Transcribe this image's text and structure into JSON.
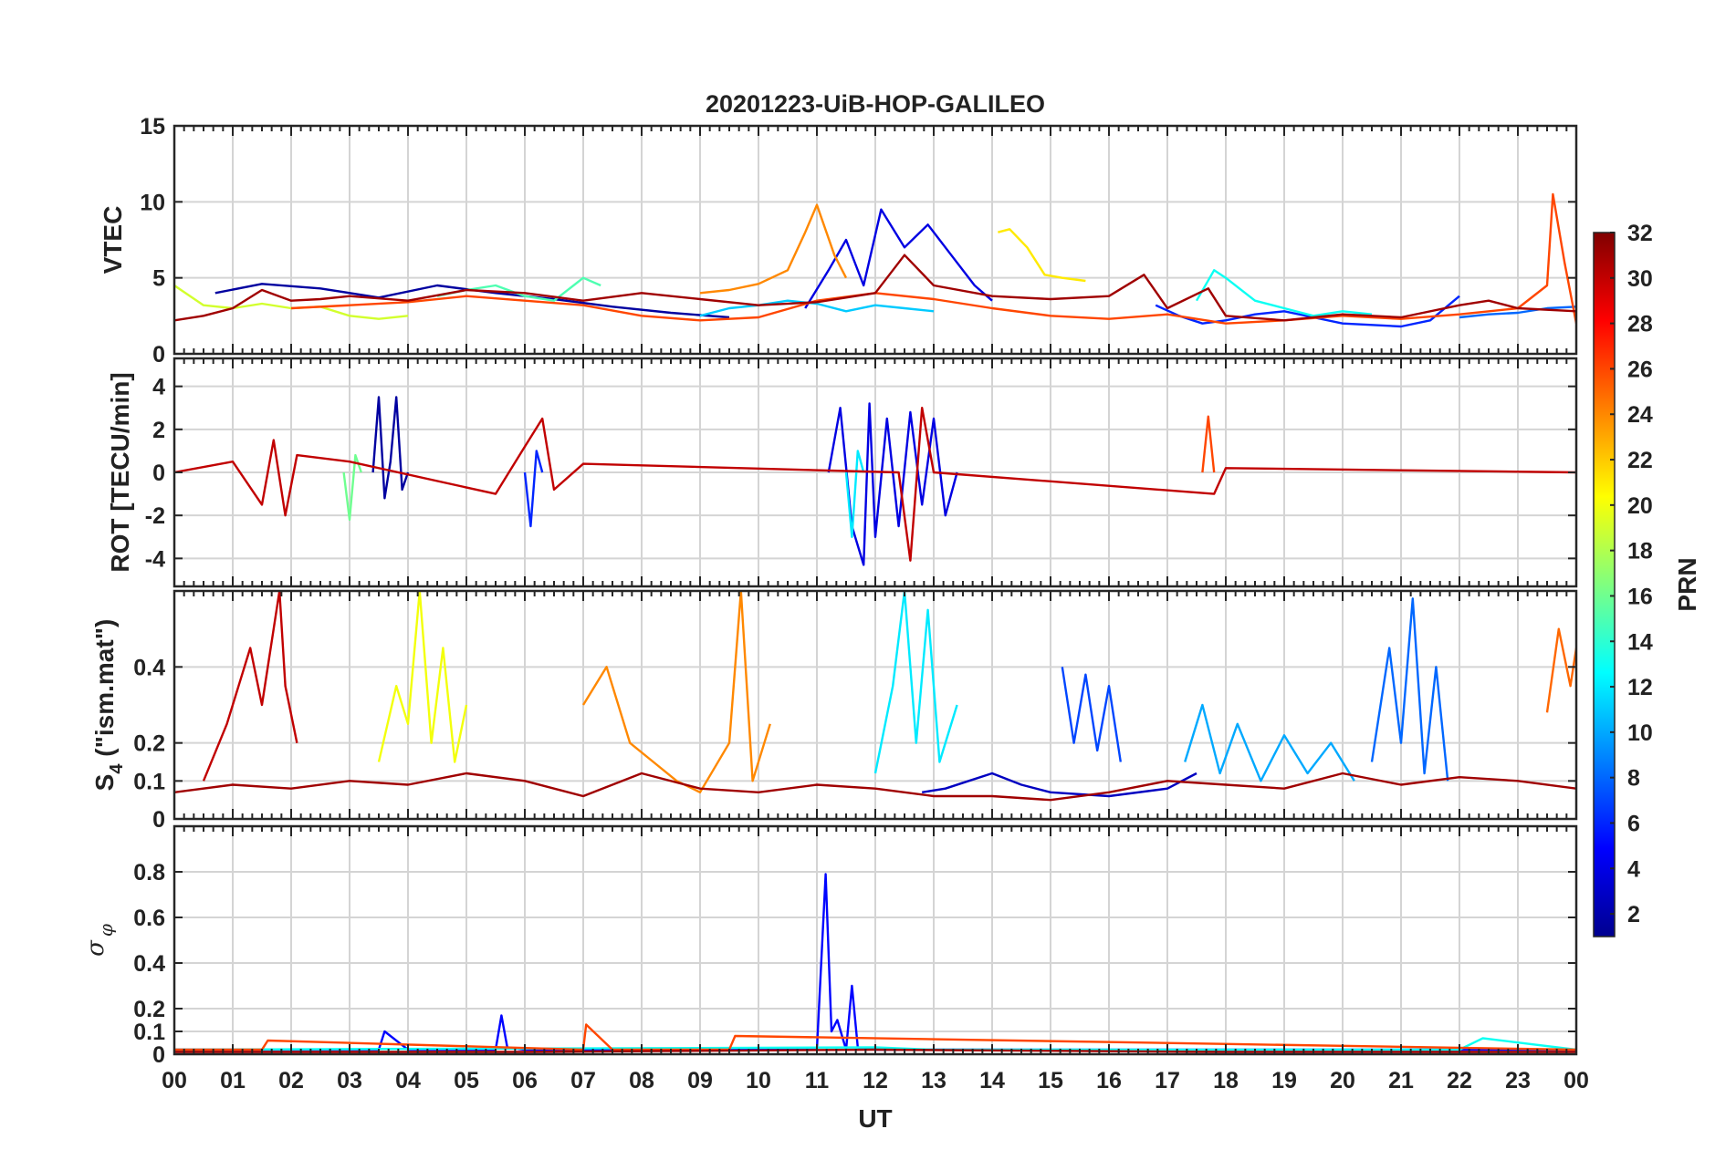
{
  "chart_data": {
    "type": "line",
    "title": "20201223-UiB-HOP-GALILEO",
    "xlabel": "UT",
    "x_ticks": [
      "00",
      "01",
      "02",
      "03",
      "04",
      "05",
      "06",
      "07",
      "08",
      "09",
      "10",
      "11",
      "12",
      "13",
      "14",
      "15",
      "16",
      "17",
      "18",
      "19",
      "20",
      "21",
      "22",
      "23",
      "00"
    ],
    "xlim_hours": [
      0,
      24
    ],
    "grid": true,
    "colorbar": {
      "label": "PRN",
      "range": [
        1,
        32
      ],
      "ticks": [
        "2",
        "4",
        "6",
        "8",
        "10",
        "12",
        "14",
        "16",
        "18",
        "20",
        "22",
        "24",
        "26",
        "28",
        "30",
        "32"
      ],
      "colormap": "jet",
      "position": "right"
    },
    "panels": [
      {
        "id": "vtec",
        "ylabel": "VTEC",
        "ylim": [
          0,
          15
        ],
        "yticks": [
          {
            "v": 0,
            "t": "0"
          },
          {
            "v": 5,
            "t": "5"
          },
          {
            "v": 10,
            "t": "10"
          },
          {
            "v": 15,
            "t": "15"
          }
        ],
        "series": [
          {
            "prn": 2,
            "x": [
              0.7,
              1.5,
              2.5,
              3.5,
              4.5,
              5.5,
              6.5,
              7.5,
              8.5,
              9.5
            ],
            "y": [
              4.0,
              4.6,
              4.3,
              3.7,
              4.5,
              4.0,
              3.6,
              3.1,
              2.7,
              2.4
            ]
          },
          {
            "prn": 4,
            "x": [
              10.8,
              11.2,
              11.5,
              11.8,
              12.1,
              12.5,
              12.9,
              13.3,
              13.7,
              14.0
            ],
            "y": [
              3.0,
              5.5,
              7.5,
              4.5,
              9.5,
              7.0,
              8.5,
              6.5,
              4.5,
              3.5
            ]
          },
          {
            "prn": 6,
            "x": [
              16.8,
              17.2,
              17.6,
              18.0,
              18.5,
              19.0,
              19.5,
              20.0,
              20.5,
              21.0,
              21.5,
              22.0
            ],
            "y": [
              3.2,
              2.5,
              2.0,
              2.2,
              2.6,
              2.8,
              2.4,
              2.0,
              1.9,
              1.8,
              2.2,
              3.8
            ]
          },
          {
            "prn": 8,
            "x": [
              22.0,
              22.5,
              23.0,
              23.5,
              24.0
            ],
            "y": [
              2.4,
              2.6,
              2.7,
              3.0,
              3.1
            ]
          },
          {
            "prn": 11,
            "x": [
              9.0,
              9.5,
              10.0,
              10.5,
              11.0,
              11.5,
              12.0,
              12.5,
              13.0
            ],
            "y": [
              2.5,
              3.0,
              3.2,
              3.5,
              3.3,
              2.8,
              3.2,
              3.0,
              2.8
            ]
          },
          {
            "prn": 13,
            "x": [
              17.5,
              17.8,
              18.0,
              18.5,
              19.0,
              19.5,
              20.0,
              20.5
            ],
            "y": [
              3.5,
              5.5,
              5.0,
              3.5,
              3.0,
              2.5,
              2.8,
              2.6
            ]
          },
          {
            "prn": 15,
            "x": [
              4.5,
              5.0,
              5.5,
              6.0,
              6.5,
              7.0,
              7.3
            ],
            "y": [
              3.8,
              4.2,
              4.5,
              3.8,
              3.5,
              5.0,
              4.5
            ]
          },
          {
            "prn": 19,
            "x": [
              0.0,
              0.5,
              1.0,
              1.5,
              2.0,
              2.5,
              3.0,
              3.5,
              4.0
            ],
            "y": [
              4.5,
              3.2,
              3.0,
              3.3,
              3.0,
              3.1,
              2.5,
              2.3,
              2.5
            ]
          },
          {
            "prn": 21,
            "x": [
              14.1,
              14.3,
              14.6,
              14.9,
              15.2,
              15.6
            ],
            "y": [
              8.0,
              8.2,
              7.0,
              5.2,
              5.0,
              4.8
            ]
          },
          {
            "prn": 24,
            "x": [
              9.0,
              9.5,
              10.0,
              10.5,
              10.8,
              11.0,
              11.3,
              11.5
            ],
            "y": [
              4.0,
              4.2,
              4.6,
              5.5,
              8.0,
              9.8,
              6.5,
              5.0
            ]
          },
          {
            "prn": 26,
            "x": [
              2.0,
              3.0,
              4.0,
              5.0,
              6.0,
              7.0,
              8.0,
              9.0,
              10.0,
              11.0,
              12.0,
              13.0,
              14.0,
              15.0,
              16.0,
              17.0,
              18.0,
              19.0,
              20.0,
              21.0,
              22.0,
              23.0,
              23.5,
              23.6,
              23.8,
              24.0
            ],
            "y": [
              3.0,
              3.2,
              3.4,
              3.8,
              3.5,
              3.2,
              2.5,
              2.2,
              2.4,
              3.5,
              4.0,
              3.6,
              3.0,
              2.5,
              2.3,
              2.6,
              2.0,
              2.2,
              2.5,
              2.3,
              2.6,
              3.0,
              4.5,
              10.5,
              6.0,
              2.0
            ]
          },
          {
            "prn": 31,
            "x": [
              0.0,
              0.5,
              1.0,
              1.5,
              2.0,
              2.5,
              3.0,
              4.0,
              5.0,
              6.0,
              7.0,
              8.0,
              9.0,
              10.0,
              11.0,
              12.0,
              12.5,
              13.0,
              14.0,
              15.0,
              16.0,
              16.6,
              17.0,
              17.7,
              18.0,
              19.0,
              20.0,
              21.0,
              22.0,
              22.5,
              23.0,
              24.0
            ],
            "y": [
              2.2,
              2.5,
              3.0,
              4.2,
              3.5,
              3.6,
              3.8,
              3.5,
              4.2,
              4.0,
              3.5,
              4.0,
              3.6,
              3.2,
              3.4,
              4.0,
              6.5,
              4.5,
              3.8,
              3.6,
              3.8,
              5.2,
              3.0,
              4.3,
              2.5,
              2.2,
              2.6,
              2.4,
              3.2,
              3.5,
              3.0,
              2.8
            ]
          }
        ]
      },
      {
        "id": "rot",
        "ylabel": "ROT [TECU/min]",
        "ylim": [
          -5.3,
          5.3
        ],
        "yticks": [
          {
            "v": -4,
            "t": "-4"
          },
          {
            "v": -2,
            "t": "-2"
          },
          {
            "v": 0,
            "t": "0"
          },
          {
            "v": 2,
            "t": "2"
          },
          {
            "v": 4,
            "t": "4"
          }
        ],
        "series": [
          {
            "prn": 2,
            "x": [
              3.4,
              3.5,
              3.6,
              3.7,
              3.8,
              3.9,
              4.0
            ],
            "y": [
              0,
              3.5,
              -1.2,
              0.5,
              3.5,
              -0.8,
              0
            ]
          },
          {
            "prn": 4,
            "x": [
              11.2,
              11.4,
              11.6,
              11.8,
              11.9,
              12.0,
              12.2,
              12.4,
              12.6,
              12.8,
              13.0,
              13.2,
              13.4
            ],
            "y": [
              0,
              3.0,
              -2.5,
              -4.3,
              3.2,
              -3.0,
              2.5,
              -2.5,
              2.8,
              -1.5,
              2.5,
              -2.0,
              0
            ]
          },
          {
            "prn": 6,
            "x": [
              6.0,
              6.1,
              6.2,
              6.3
            ],
            "y": [
              0,
              -2.5,
              1.0,
              0
            ]
          },
          {
            "prn": 12,
            "x": [
              11.5,
              11.6,
              11.7,
              11.8
            ],
            "y": [
              0,
              -3.0,
              1.0,
              0
            ]
          },
          {
            "prn": 16,
            "x": [
              2.9,
              3.0,
              3.1,
              3.2
            ],
            "y": [
              0,
              -2.2,
              0.8,
              0
            ]
          },
          {
            "prn": 26,
            "x": [
              17.6,
              17.7,
              17.8
            ],
            "y": [
              0,
              2.6,
              0
            ]
          },
          {
            "prn": 30,
            "x": [
              0.0,
              1.0,
              1.5,
              1.7,
              1.9,
              2.1,
              3.0,
              5.5,
              6.0,
              6.3,
              6.5,
              7.0,
              12.4,
              12.6,
              12.8,
              13.0,
              17.8,
              18.0,
              24.0
            ],
            "y": [
              0,
              0.5,
              -1.5,
              1.5,
              -2.0,
              0.8,
              0.5,
              -1.0,
              1.2,
              2.5,
              -0.8,
              0.4,
              0,
              -4.1,
              3.0,
              0,
              -1.0,
              0.2,
              0
            ]
          }
        ]
      },
      {
        "id": "s4",
        "ylabel": "S4 (\"ism.mat\")",
        "ylim": [
          0,
          0.6
        ],
        "yticks": [
          {
            "v": 0,
            "t": "0"
          },
          {
            "v": 0.1,
            "t": "0.1"
          },
          {
            "v": 0.2,
            "t": "0.2"
          },
          {
            "v": 0.4,
            "t": "0.4"
          }
        ],
        "series": [
          {
            "prn": 3,
            "x": [
              12.8,
              13.2,
              13.6,
              14.0,
              14.5,
              15.0,
              16.0,
              17.0,
              17.5
            ],
            "y": [
              0.07,
              0.08,
              0.1,
              0.12,
              0.09,
              0.07,
              0.06,
              0.08,
              0.12
            ]
          },
          {
            "prn": 7,
            "x": [
              15.2,
              15.4,
              15.6,
              15.8,
              16.0,
              16.2
            ],
            "y": [
              0.4,
              0.2,
              0.38,
              0.18,
              0.35,
              0.15
            ]
          },
          {
            "prn": 8,
            "x": [
              20.5,
              20.8,
              21.0,
              21.2,
              21.4,
              21.6,
              21.8
            ],
            "y": [
              0.15,
              0.45,
              0.2,
              0.58,
              0.12,
              0.4,
              0.1
            ]
          },
          {
            "prn": 10,
            "x": [
              17.3,
              17.6,
              17.9,
              18.2,
              18.6,
              19.0,
              19.4,
              19.8,
              20.2
            ],
            "y": [
              0.15,
              0.3,
              0.12,
              0.25,
              0.1,
              0.22,
              0.12,
              0.2,
              0.1
            ]
          },
          {
            "prn": 12,
            "x": [
              12.0,
              12.3,
              12.5,
              12.7,
              12.9,
              13.1,
              13.4
            ],
            "y": [
              0.12,
              0.35,
              0.6,
              0.2,
              0.55,
              0.15,
              0.3
            ]
          },
          {
            "prn": 20,
            "x": [
              3.5,
              3.8,
              4.0,
              4.2,
              4.4,
              4.6,
              4.8,
              5.0
            ],
            "y": [
              0.15,
              0.35,
              0.25,
              0.6,
              0.2,
              0.45,
              0.15,
              0.3
            ]
          },
          {
            "prn": 24,
            "x": [
              7.0,
              7.4,
              7.8,
              8.2,
              8.6,
              9.0,
              9.5,
              9.7,
              9.9,
              10.2
            ],
            "y": [
              0.3,
              0.4,
              0.2,
              0.15,
              0.1,
              0.07,
              0.2,
              0.6,
              0.1,
              0.25
            ]
          },
          {
            "prn": 25,
            "x": [
              23.5,
              23.7,
              23.9,
              24.0
            ],
            "y": [
              0.28,
              0.5,
              0.35,
              0.45
            ]
          },
          {
            "prn": 30,
            "x": [
              0.5,
              0.9,
              1.1,
              1.3,
              1.5,
              1.7,
              1.8,
              1.9,
              2.1
            ],
            "y": [
              0.1,
              0.25,
              0.35,
              0.45,
              0.3,
              0.5,
              0.6,
              0.35,
              0.2
            ]
          },
          {
            "prn": 31,
            "x": [
              0.0,
              1.0,
              2.0,
              3.0,
              4.0,
              5.0,
              6.0,
              7.0,
              8.0,
              9.0,
              10.0,
              11.0,
              12.0,
              13.0,
              14.0,
              15.0,
              16.0,
              17.0,
              18.0,
              19.0,
              20.0,
              21.0,
              22.0,
              23.0,
              24.0
            ],
            "y": [
              0.07,
              0.09,
              0.08,
              0.1,
              0.09,
              0.12,
              0.1,
              0.06,
              0.12,
              0.08,
              0.07,
              0.09,
              0.08,
              0.06,
              0.06,
              0.05,
              0.07,
              0.1,
              0.09,
              0.08,
              0.12,
              0.09,
              0.11,
              0.1,
              0.08
            ]
          }
        ]
      },
      {
        "id": "sigma",
        "ylabel": "σφ",
        "ylim": [
          0,
          1.0
        ],
        "yticks": [
          {
            "v": 0,
            "t": "0"
          },
          {
            "v": 0.1,
            "t": "0.1"
          },
          {
            "v": 0.2,
            "t": "0.2"
          },
          {
            "v": 0.4,
            "t": "0.4"
          },
          {
            "v": 0.6,
            "t": "0.6"
          },
          {
            "v": 0.8,
            "t": "0.8"
          }
        ],
        "series": [
          {
            "prn": 5,
            "x": [
              0.0,
              3.0,
              3.5,
              3.6,
              4.0,
              5.5,
              5.6,
              5.7,
              6.0,
              11.0,
              11.15,
              11.25,
              11.35,
              11.5,
              11.6,
              11.7,
              12.0,
              24.0
            ],
            "y": [
              0.02,
              0.02,
              0.02,
              0.1,
              0.02,
              0.02,
              0.17,
              0.03,
              0.02,
              0.02,
              0.79,
              0.1,
              0.15,
              0.02,
              0.3,
              0.03,
              0.02,
              0.02
            ]
          },
          {
            "prn": 13,
            "x": [
              0.0,
              12.0,
              13.0,
              22.0,
              22.4,
              24.0
            ],
            "y": [
              0.02,
              0.03,
              0.02,
              0.02,
              0.07,
              0.02
            ]
          },
          {
            "prn": 26,
            "x": [
              0.0,
              1.5,
              1.6,
              7.0,
              7.05,
              7.5,
              9.5,
              9.6,
              24.0
            ],
            "y": [
              0.02,
              0.02,
              0.06,
              0.02,
              0.13,
              0.02,
              0.02,
              0.08,
              0.02
            ]
          },
          {
            "prn": 31,
            "x": [
              0.0,
              6.0,
              12.0,
              18.0,
              24.0
            ],
            "y": [
              0.01,
              0.01,
              0.02,
              0.01,
              0.01
            ]
          }
        ]
      }
    ]
  }
}
